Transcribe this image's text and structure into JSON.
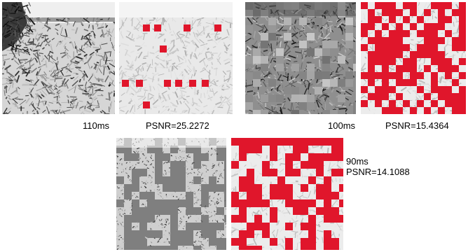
{
  "figure": {
    "row1_left": {
      "time": "110ms",
      "psnr": "PSNR=25.2272"
    },
    "row1_right": {
      "time": "100ms",
      "psnr": "PSNR=15.4364"
    },
    "row2": {
      "time": "90ms",
      "psnr": "PSNR=14.1088"
    }
  },
  "colors": {
    "mask": "#e0162b",
    "gray_tile": "#7f7f7f",
    "light_bg": "#e8e8e8"
  }
}
